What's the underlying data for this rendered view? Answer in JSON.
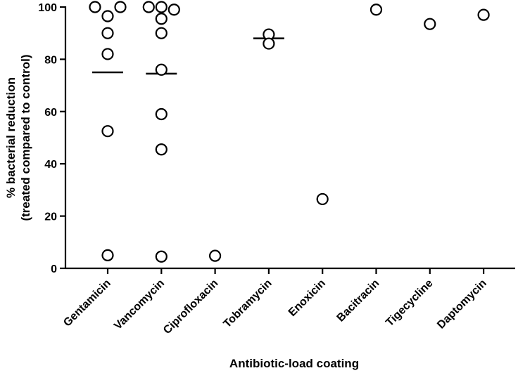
{
  "chart_data": {
    "type": "scatter",
    "title": "",
    "xlabel": "Antibiotic-load coating",
    "ylabel_line1": "% bacterial reduction",
    "ylabel_line2": "(treated compared to control)",
    "ylim": [
      0,
      100
    ],
    "yticks": [
      0,
      20,
      40,
      60,
      80,
      100
    ],
    "categories": [
      "Gentamicin",
      "Vancomycin",
      "Ciprofloxacin",
      "Tobramycin",
      "Enoxicin",
      "Bacitracin",
      "Tigecycline",
      "Daptomycin"
    ],
    "groups": [
      {
        "category": "Gentamicin",
        "points": [
          {
            "v": 100,
            "j": -18
          },
          {
            "v": 100,
            "j": 18
          },
          {
            "v": 96.5,
            "j": 0
          },
          {
            "v": 90,
            "j": 0
          },
          {
            "v": 82,
            "j": 0
          },
          {
            "v": 52.5,
            "j": 0
          },
          {
            "v": 5,
            "j": 0
          }
        ],
        "mean": 75
      },
      {
        "category": "Vancomycin",
        "points": [
          {
            "v": 100,
            "j": -18
          },
          {
            "v": 100,
            "j": 0
          },
          {
            "v": 99,
            "j": 18
          },
          {
            "v": 95.5,
            "j": 0
          },
          {
            "v": 90,
            "j": 0
          },
          {
            "v": 76,
            "j": 0
          },
          {
            "v": 59,
            "j": 0
          },
          {
            "v": 45.5,
            "j": 0
          },
          {
            "v": 4.5,
            "j": 0
          }
        ],
        "mean": 74.5
      },
      {
        "category": "Ciprofloxacin",
        "points": [
          {
            "v": 4.8,
            "j": 0
          }
        ],
        "mean": null
      },
      {
        "category": "Tobramycin",
        "points": [
          {
            "v": 89.5,
            "j": 0
          },
          {
            "v": 86,
            "j": 0
          }
        ],
        "mean": 88
      },
      {
        "category": "Enoxicin",
        "points": [
          {
            "v": 26.5,
            "j": 0
          }
        ],
        "mean": null
      },
      {
        "category": "Bacitracin",
        "points": [
          {
            "v": 99,
            "j": 0
          }
        ],
        "mean": null
      },
      {
        "category": "Tigecycline",
        "points": [
          {
            "v": 93.5,
            "j": 0
          }
        ],
        "mean": null
      },
      {
        "category": "Daptomycin",
        "points": [
          {
            "v": 97,
            "j": 0
          }
        ],
        "mean": null
      }
    ]
  }
}
